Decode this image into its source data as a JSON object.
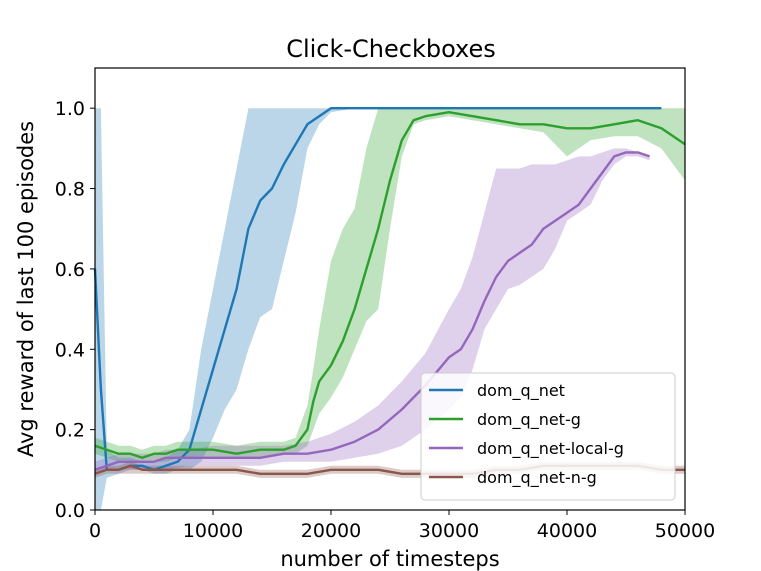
{
  "chart_data": {
    "type": "line",
    "title": "Click-Checkboxes",
    "xlabel": "number of timesteps",
    "ylabel": "Avg reward of last 100 episodes",
    "xlim": [
      0,
      50000
    ],
    "ylim": [
      0,
      1.1
    ],
    "xticks": [
      0,
      10000,
      20000,
      30000,
      40000,
      50000
    ],
    "yticks": [
      0.0,
      0.2,
      0.4,
      0.6,
      0.8,
      1.0
    ],
    "xtick_labels": [
      "0",
      "10000",
      "20000",
      "30000",
      "40000",
      "50000"
    ],
    "ytick_labels": [
      "0.0",
      "0.2",
      "0.4",
      "0.6",
      "0.8",
      "1.0"
    ],
    "grid": false,
    "legend_position": "lower-right",
    "series": [
      {
        "name": "dom_q_net",
        "color": "#1f77b4",
        "x": [
          0,
          500,
          1000,
          2000,
          3000,
          4000,
          5000,
          6000,
          7000,
          8000,
          9000,
          10000,
          11000,
          12000,
          13000,
          14000,
          15000,
          16000,
          17000,
          18000,
          19000,
          20000,
          22000,
          25000,
          30000,
          35000,
          40000,
          45000,
          48000
        ],
        "y": [
          0.6,
          0.3,
          0.1,
          0.1,
          0.11,
          0.11,
          0.1,
          0.11,
          0.12,
          0.15,
          0.25,
          0.35,
          0.45,
          0.55,
          0.7,
          0.77,
          0.8,
          0.86,
          0.91,
          0.96,
          0.98,
          1.0,
          1.0,
          1.0,
          1.0,
          1.0,
          1.0,
          1.0,
          1.0
        ],
        "lower": [
          0.0,
          0.0,
          0.08,
          0.09,
          0.1,
          0.1,
          0.09,
          0.09,
          0.1,
          0.1,
          0.12,
          0.18,
          0.25,
          0.3,
          0.4,
          0.48,
          0.5,
          0.62,
          0.74,
          0.9,
          0.96,
          0.99,
          1.0,
          1.0,
          1.0,
          1.0,
          1.0,
          1.0,
          1.0
        ],
        "upper": [
          1.0,
          1.0,
          0.15,
          0.13,
          0.13,
          0.12,
          0.12,
          0.13,
          0.15,
          0.2,
          0.4,
          0.55,
          0.7,
          0.85,
          1.0,
          1.0,
          1.0,
          1.0,
          1.0,
          1.0,
          1.0,
          1.0,
          1.0,
          1.0,
          1.0,
          1.0,
          1.0,
          1.0,
          1.0
        ]
      },
      {
        "name": "dom_q_net-g",
        "color": "#2ca02c",
        "x": [
          0,
          1000,
          2000,
          3000,
          4000,
          5000,
          6000,
          7000,
          8000,
          9000,
          10000,
          12000,
          14000,
          16000,
          17000,
          18000,
          18500,
          19000,
          20000,
          21000,
          22000,
          23000,
          24000,
          25000,
          26000,
          27000,
          28000,
          30000,
          32000,
          34000,
          36000,
          38000,
          40000,
          42000,
          44000,
          46000,
          48000,
          50000
        ],
        "y": [
          0.16,
          0.15,
          0.14,
          0.14,
          0.13,
          0.14,
          0.14,
          0.15,
          0.15,
          0.15,
          0.15,
          0.14,
          0.15,
          0.15,
          0.16,
          0.2,
          0.27,
          0.32,
          0.36,
          0.42,
          0.5,
          0.6,
          0.7,
          0.82,
          0.92,
          0.97,
          0.98,
          0.99,
          0.98,
          0.97,
          0.96,
          0.96,
          0.95,
          0.95,
          0.96,
          0.97,
          0.95,
          0.91
        ],
        "lower": [
          0.14,
          0.13,
          0.12,
          0.12,
          0.12,
          0.12,
          0.12,
          0.13,
          0.13,
          0.13,
          0.13,
          0.13,
          0.13,
          0.14,
          0.14,
          0.16,
          0.2,
          0.24,
          0.28,
          0.33,
          0.4,
          0.47,
          0.5,
          0.7,
          0.88,
          0.96,
          0.97,
          0.98,
          0.97,
          0.96,
          0.95,
          0.94,
          0.88,
          0.92,
          0.93,
          0.93,
          0.9,
          0.82
        ],
        "upper": [
          0.18,
          0.17,
          0.16,
          0.16,
          0.15,
          0.16,
          0.16,
          0.17,
          0.17,
          0.17,
          0.17,
          0.16,
          0.17,
          0.17,
          0.18,
          0.26,
          0.35,
          0.45,
          0.62,
          0.7,
          0.75,
          0.9,
          1.0,
          1.0,
          1.0,
          1.0,
          1.0,
          1.0,
          1.0,
          1.0,
          1.0,
          1.0,
          1.0,
          1.0,
          1.0,
          1.0,
          1.0,
          1.0
        ]
      },
      {
        "name": "dom_q_net-local-g",
        "color": "#9467bd",
        "x": [
          0,
          1000,
          2000,
          3000,
          4000,
          5000,
          6000,
          8000,
          10000,
          12000,
          14000,
          16000,
          18000,
          20000,
          22000,
          24000,
          26000,
          28000,
          30000,
          31000,
          32000,
          33000,
          34000,
          35000,
          36000,
          37000,
          38000,
          39000,
          40000,
          41000,
          42000,
          43000,
          44000,
          45000,
          46000,
          47000
        ],
        "y": [
          0.1,
          0.11,
          0.12,
          0.12,
          0.12,
          0.12,
          0.13,
          0.13,
          0.13,
          0.13,
          0.13,
          0.14,
          0.14,
          0.15,
          0.17,
          0.2,
          0.25,
          0.31,
          0.38,
          0.4,
          0.45,
          0.52,
          0.58,
          0.62,
          0.64,
          0.66,
          0.7,
          0.72,
          0.74,
          0.76,
          0.8,
          0.84,
          0.88,
          0.89,
          0.89,
          0.88
        ],
        "lower": [
          0.09,
          0.1,
          0.1,
          0.1,
          0.1,
          0.1,
          0.1,
          0.11,
          0.11,
          0.11,
          0.11,
          0.12,
          0.12,
          0.12,
          0.13,
          0.14,
          0.16,
          0.2,
          0.25,
          0.28,
          0.35,
          0.45,
          0.5,
          0.55,
          0.56,
          0.58,
          0.6,
          0.65,
          0.72,
          0.74,
          0.76,
          0.82,
          0.86,
          0.88,
          0.88,
          0.87
        ],
        "upper": [
          0.12,
          0.13,
          0.14,
          0.14,
          0.14,
          0.14,
          0.15,
          0.15,
          0.16,
          0.16,
          0.16,
          0.16,
          0.17,
          0.19,
          0.22,
          0.26,
          0.32,
          0.39,
          0.5,
          0.55,
          0.63,
          0.74,
          0.85,
          0.85,
          0.85,
          0.86,
          0.86,
          0.86,
          0.87,
          0.88,
          0.88,
          0.89,
          0.9,
          0.9,
          0.89,
          0.88
        ]
      },
      {
        "name": "dom_q_net-n-g",
        "color": "#8c564b",
        "x": [
          0,
          1000,
          2000,
          3000,
          4000,
          6000,
          8000,
          10000,
          12000,
          14000,
          16000,
          18000,
          20000,
          22000,
          24000,
          26000,
          28000,
          30000,
          32000,
          34000,
          36000,
          38000,
          40000,
          42000,
          44000,
          46000,
          48000,
          50000
        ],
        "y": [
          0.09,
          0.1,
          0.1,
          0.11,
          0.1,
          0.1,
          0.1,
          0.1,
          0.1,
          0.09,
          0.09,
          0.09,
          0.1,
          0.1,
          0.1,
          0.09,
          0.09,
          0.09,
          0.09,
          0.1,
          0.1,
          0.11,
          0.11,
          0.11,
          0.11,
          0.11,
          0.1,
          0.1
        ],
        "lower": [
          0.08,
          0.09,
          0.09,
          0.09,
          0.09,
          0.09,
          0.09,
          0.09,
          0.09,
          0.08,
          0.08,
          0.08,
          0.09,
          0.09,
          0.09,
          0.08,
          0.08,
          0.08,
          0.08,
          0.09,
          0.09,
          0.1,
          0.1,
          0.1,
          0.1,
          0.1,
          0.09,
          0.09
        ],
        "upper": [
          0.1,
          0.11,
          0.11,
          0.12,
          0.11,
          0.11,
          0.11,
          0.11,
          0.11,
          0.1,
          0.1,
          0.1,
          0.11,
          0.11,
          0.11,
          0.1,
          0.1,
          0.1,
          0.1,
          0.11,
          0.11,
          0.12,
          0.12,
          0.12,
          0.12,
          0.12,
          0.11,
          0.11
        ]
      }
    ]
  }
}
